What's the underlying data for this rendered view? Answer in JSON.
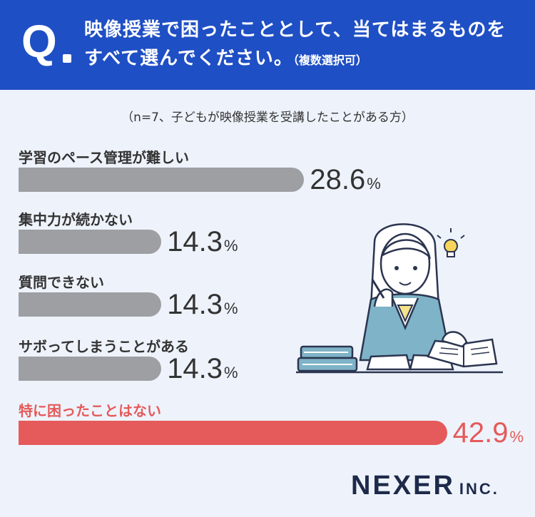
{
  "header": {
    "q_mark": "Q",
    "question": "映像授業で困ったこととして、当てはまるものをすべて選んでください。",
    "note": "（複数選択可）"
  },
  "sample_note": "（n=7、子どもが映像授業を受講したことがある方）",
  "chart_data": {
    "type": "bar",
    "orientation": "horizontal",
    "title": "",
    "categories": [
      "学習のペース管理が難しい",
      "集中力が続かない",
      "質問できない",
      "サボってしまうことがある",
      "特に困ったことはない"
    ],
    "values": [
      28.6,
      14.3,
      14.3,
      14.3,
      42.9
    ],
    "value_labels": [
      "28.6",
      "14.3",
      "14.3",
      "14.3",
      "42.9"
    ],
    "unit": "%",
    "highlight_index": 4,
    "colors": {
      "default": "#9e9fa3",
      "highlight": "#e55a5a"
    },
    "xlim": [
      0,
      60
    ],
    "grid": false,
    "legend": false
  },
  "brand": {
    "main": "NEXER",
    "inc": "INC."
  },
  "colors": {
    "header_bg": "#1f4fc4",
    "page_bg": "#eef3fb",
    "text": "#333333"
  }
}
